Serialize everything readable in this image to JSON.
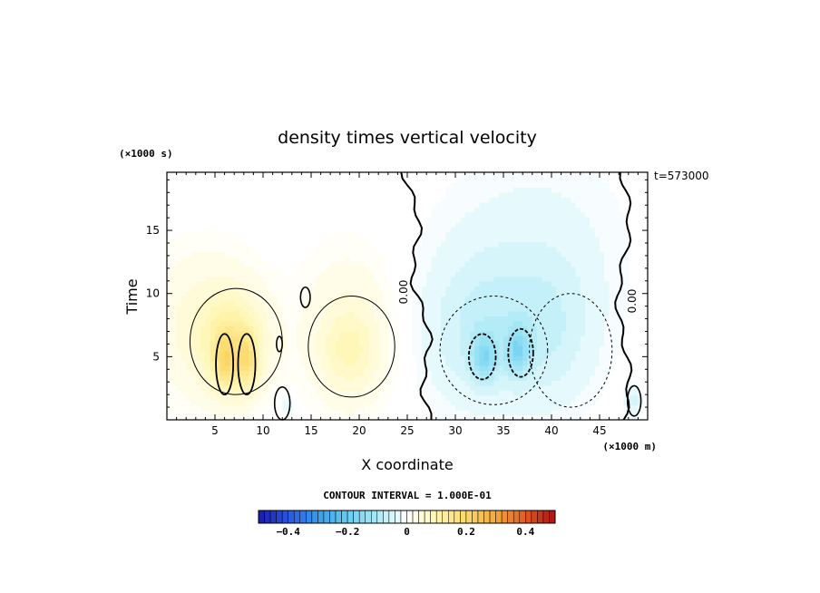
{
  "chart_data": {
    "type": "heatmap",
    "title": "density times vertical velocity",
    "xlabel": "X coordinate",
    "ylabel": "Time",
    "x_unit": "(×1000 m)",
    "y_unit": "(×1000 s)",
    "timestamp": "t=573000",
    "contour_interval_text": "CONTOUR INTERVAL = 1.000E-01",
    "contour_label": "0.00",
    "xlim": [
      0,
      50
    ],
    "ylim": [
      0,
      19.6
    ],
    "x_ticks": [
      5,
      10,
      15,
      20,
      25,
      30,
      35,
      40,
      45
    ],
    "x_tick_labels": [
      "5",
      "10",
      "15",
      "20",
      "25",
      "30",
      "35",
      "40",
      "45"
    ],
    "y_ticks": [
      5,
      10,
      15
    ],
    "y_tick_labels": [
      "5",
      "10",
      "15"
    ],
    "colorbar": {
      "min": -0.5,
      "max": 0.5,
      "levels": 50,
      "ticks": [
        -0.4,
        -0.2,
        0,
        0.2,
        0.4
      ],
      "tick_labels": [
        "−0.4",
        "−0.2",
        "0",
        "0.2",
        "0.4"
      ],
      "colors": [
        "#1a1aa8",
        "#2a55e0",
        "#3a9be8",
        "#66ccf0",
        "#aaeaf6",
        "#ffffff",
        "#fff6b0",
        "#fbd96a",
        "#f5a83a",
        "#e05a20",
        "#b01010"
      ]
    },
    "features": [
      {
        "x": 4,
        "y": 7.5,
        "sx": 6,
        "sy": 6,
        "v": 0.05
      },
      {
        "x": 7,
        "y": 6,
        "sx": 3.2,
        "sy": 3.6,
        "v": 0.1
      },
      {
        "x": 6,
        "y": 4.5,
        "sx": 1.1,
        "sy": 2.2,
        "v": 0.09
      },
      {
        "x": 8.3,
        "y": 4.5,
        "sx": 1.1,
        "sy": 2.2,
        "v": 0.09
      },
      {
        "x": 19,
        "y": 7,
        "sx": 5,
        "sy": 6.5,
        "v": 0.045
      },
      {
        "x": 19,
        "y": 5.5,
        "sx": 2.8,
        "sy": 3,
        "v": 0.05
      },
      {
        "x": 32.5,
        "y": 7,
        "sx": 6,
        "sy": 6,
        "v": -0.06
      },
      {
        "x": 40,
        "y": 7,
        "sx": 5,
        "sy": 6,
        "v": -0.045
      },
      {
        "x": 33,
        "y": 5,
        "sx": 1.3,
        "sy": 1.8,
        "v": -0.1
      },
      {
        "x": 36.5,
        "y": 5.5,
        "sx": 1.2,
        "sy": 1.8,
        "v": -0.1
      },
      {
        "x": 38,
        "y": 14,
        "sx": 10,
        "sy": 8,
        "v": -0.025
      },
      {
        "x": 48.5,
        "y": 1.5,
        "sx": 0.8,
        "sy": 1.2,
        "v": -0.05
      },
      {
        "x": 12.5,
        "y": 1.2,
        "sx": 0.7,
        "sy": 1,
        "v": -0.04
      }
    ]
  }
}
